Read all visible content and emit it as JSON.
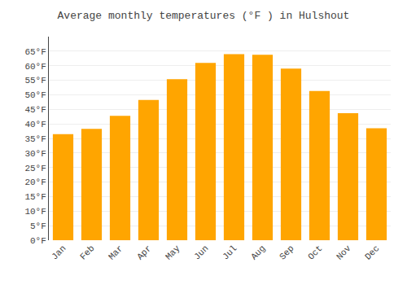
{
  "chart_data": {
    "type": "bar",
    "title": "Average monthly temperatures (°F ) in Hulshout",
    "categories": [
      "Jan",
      "Feb",
      "Mar",
      "Apr",
      "May",
      "Jun",
      "Jul",
      "Aug",
      "Sep",
      "Oct",
      "Nov",
      "Dec"
    ],
    "values": [
      36.5,
      38.3,
      42.8,
      48.2,
      55.4,
      61.0,
      64.0,
      63.8,
      59.0,
      51.3,
      43.7,
      38.5
    ],
    "color": "#FFA500",
    "ylim": [
      0,
      70
    ],
    "yticks": [
      {
        "value": 0,
        "label": "0°F"
      },
      {
        "value": 5,
        "label": "5°F"
      },
      {
        "value": 10,
        "label": "10°F"
      },
      {
        "value": 15,
        "label": "15°F"
      },
      {
        "value": 20,
        "label": "20°F"
      },
      {
        "value": 25,
        "label": "25°F"
      },
      {
        "value": 30,
        "label": "30°F"
      },
      {
        "value": 35,
        "label": "35°F"
      },
      {
        "value": 40,
        "label": "40°F"
      },
      {
        "value": 45,
        "label": "45°F"
      },
      {
        "value": 50,
        "label": "50°F"
      },
      {
        "value": 55,
        "label": "55°F"
      },
      {
        "value": 60,
        "label": "60°F"
      },
      {
        "value": 65,
        "label": "65°F"
      }
    ],
    "grid": true
  }
}
